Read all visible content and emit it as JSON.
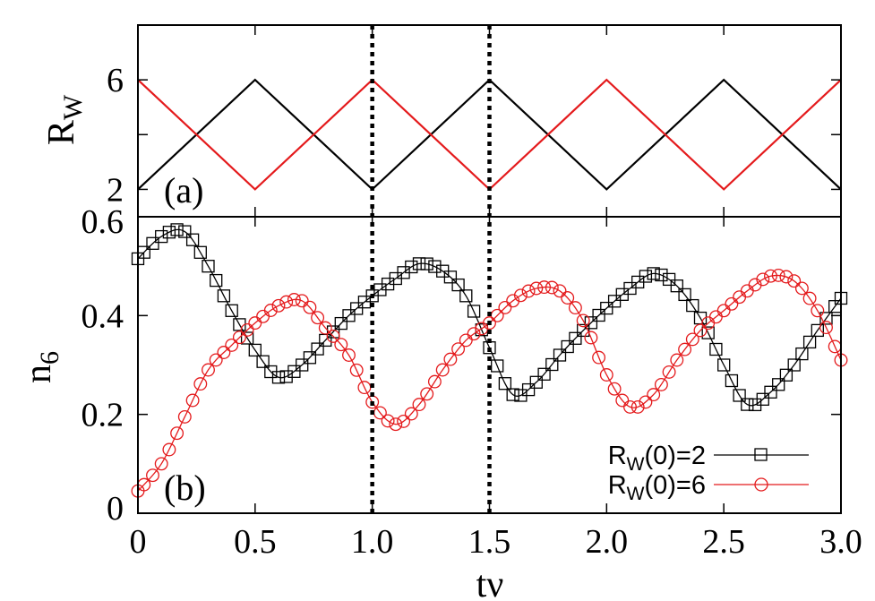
{
  "chart_data": [
    {
      "id": "a",
      "type": "line",
      "panel_label": "(a)",
      "ylabel": "R",
      "ylabel_sub": "W",
      "xlim": [
        0,
        3
      ],
      "ylim": [
        1,
        8
      ],
      "yticks": [
        2,
        6
      ],
      "ytick_labels": [
        "2",
        "6"
      ],
      "minor_yticks": [
        4
      ],
      "series": [
        {
          "name": "RW(0)=2",
          "color": "#000000",
          "x": [
            0,
            0.5,
            1.0,
            1.5,
            2.0,
            2.5,
            3.0
          ],
          "y": [
            2,
            6,
            2,
            6,
            2,
            6,
            2
          ]
        },
        {
          "name": "RW(0)=6",
          "color": "#e41a1c",
          "x": [
            0,
            0.5,
            1.0,
            1.5,
            2.0,
            2.5,
            3.0
          ],
          "y": [
            6,
            2,
            6,
            2,
            6,
            2,
            6
          ]
        }
      ]
    },
    {
      "id": "b",
      "type": "line",
      "panel_label": "(b)",
      "ylabel": "n",
      "ylabel_sub": "6",
      "xlabel": "tν",
      "xlim": [
        0,
        3
      ],
      "ylim": [
        0,
        0.6
      ],
      "yticks": [
        0,
        0.2,
        0.4,
        0.6
      ],
      "ytick_labels": [
        "0",
        "0.2",
        "0.4",
        "0.6"
      ],
      "xticks": [
        0,
        0.5,
        1.0,
        1.5,
        2.0,
        2.5,
        3.0
      ],
      "xtick_labels": [
        "0",
        "0.5",
        "1.0",
        "1.5",
        "2.0",
        "2.5",
        "3.0"
      ],
      "legend_position": "bottom-right",
      "series": [
        {
          "name": "RW(0)=2",
          "label_main": "R",
          "label_sub": "W",
          "label_rest": "(0)=2",
          "color": "#000000",
          "marker": "square",
          "x": [
            0,
            0.1,
            0.2,
            0.3,
            0.4,
            0.5,
            0.6,
            0.7,
            0.8,
            0.9,
            1.0,
            1.1,
            1.2,
            1.3,
            1.4,
            1.5,
            1.6,
            1.7,
            1.8,
            1.9,
            2.0,
            2.1,
            2.2,
            2.3,
            2.4,
            2.5,
            2.6,
            2.7,
            2.8,
            2.9,
            3.0
          ],
          "y": [
            0.515,
            0.56,
            0.57,
            0.5,
            0.41,
            0.33,
            0.275,
            0.3,
            0.35,
            0.4,
            0.44,
            0.475,
            0.505,
            0.49,
            0.44,
            0.335,
            0.24,
            0.265,
            0.32,
            0.37,
            0.415,
            0.455,
            0.485,
            0.46,
            0.395,
            0.3,
            0.22,
            0.245,
            0.3,
            0.37,
            0.435
          ]
        },
        {
          "name": "RW(0)=6",
          "label_main": "R",
          "label_sub": "W",
          "label_rest": "(0)=6",
          "color": "#e41a1c",
          "marker": "circle",
          "x": [
            0,
            0.1,
            0.2,
            0.3,
            0.4,
            0.5,
            0.6,
            0.7,
            0.8,
            0.9,
            1.0,
            1.1,
            1.2,
            1.3,
            1.4,
            1.5,
            1.6,
            1.7,
            1.8,
            1.9,
            2.0,
            2.1,
            2.2,
            2.3,
            2.4,
            2.5,
            2.6,
            2.7,
            2.8,
            2.9,
            3.0
          ],
          "y": [
            0.045,
            0.1,
            0.195,
            0.29,
            0.34,
            0.385,
            0.42,
            0.43,
            0.375,
            0.32,
            0.225,
            0.18,
            0.22,
            0.29,
            0.35,
            0.385,
            0.43,
            0.455,
            0.45,
            0.39,
            0.28,
            0.215,
            0.24,
            0.31,
            0.37,
            0.41,
            0.45,
            0.48,
            0.47,
            0.41,
            0.31
          ]
        }
      ]
    }
  ],
  "vertical_markers": [
    1.0,
    1.5
  ]
}
